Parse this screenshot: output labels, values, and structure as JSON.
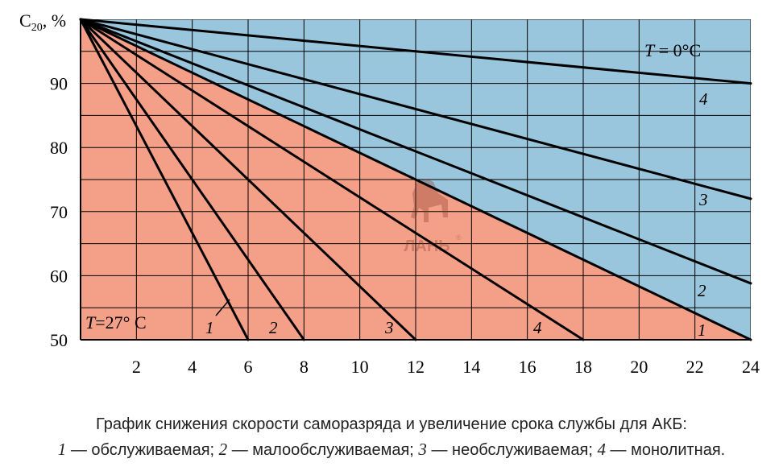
{
  "chart_data": {
    "type": "line",
    "ylabel_main": "C",
    "ylabel_sub": "20",
    "ylabel_unit": ", %",
    "xlabel": "",
    "xlim": [
      0,
      24
    ],
    "ylim": [
      50,
      100
    ],
    "x_ticks": [
      2,
      4,
      6,
      8,
      10,
      12,
      14,
      16,
      18,
      20,
      22,
      24
    ],
    "y_ticks": [
      50,
      60,
      70,
      80,
      90
    ],
    "grid": true,
    "regions": [
      {
        "label_T": "T",
        "label_rest": " = 0°C",
        "color": "#99c6dc"
      },
      {
        "label_T": "T",
        "label_rest": "=27° C",
        "color": "#f4a088"
      }
    ],
    "series": [
      {
        "group": "0°C",
        "name": "1",
        "x": [
          0,
          24
        ],
        "y": [
          100,
          50
        ]
      },
      {
        "group": "0°C",
        "name": "2",
        "x": [
          0,
          24
        ],
        "y": [
          100,
          58.8
        ]
      },
      {
        "group": "0°C",
        "name": "3",
        "x": [
          0,
          24
        ],
        "y": [
          100,
          72
        ]
      },
      {
        "group": "0°C",
        "name": "4",
        "x": [
          0,
          24
        ],
        "y": [
          100,
          90
        ]
      },
      {
        "group": "27°C",
        "name": "1",
        "x": [
          0,
          6
        ],
        "y": [
          100,
          50
        ]
      },
      {
        "group": "27°C",
        "name": "2",
        "x": [
          0,
          8
        ],
        "y": [
          100,
          50
        ]
      },
      {
        "group": "27°C",
        "name": "3",
        "x": [
          0,
          12
        ],
        "y": [
          100,
          50
        ]
      },
      {
        "group": "27°C",
        "name": "4",
        "x": [
          0,
          18
        ],
        "y": [
          100,
          50
        ]
      }
    ],
    "watermark": "ЛАНЬ",
    "watermark_mark": "®"
  },
  "caption": {
    "line1": "График снижения скорости саморазряда и увеличение срока службы для АКБ:",
    "n1": "1",
    "t1": " — обслуживаемая; ",
    "n2": "2",
    "t2": " — малообслуживаемая; ",
    "n3": "3",
    "t3": " — необслуживаемая; ",
    "n4": "4",
    "t4": " — монолитная."
  },
  "colors": {
    "blue_region": "#99c6dc",
    "red_region": "#f4a088",
    "lines": "#000000",
    "grid": "#000000"
  }
}
